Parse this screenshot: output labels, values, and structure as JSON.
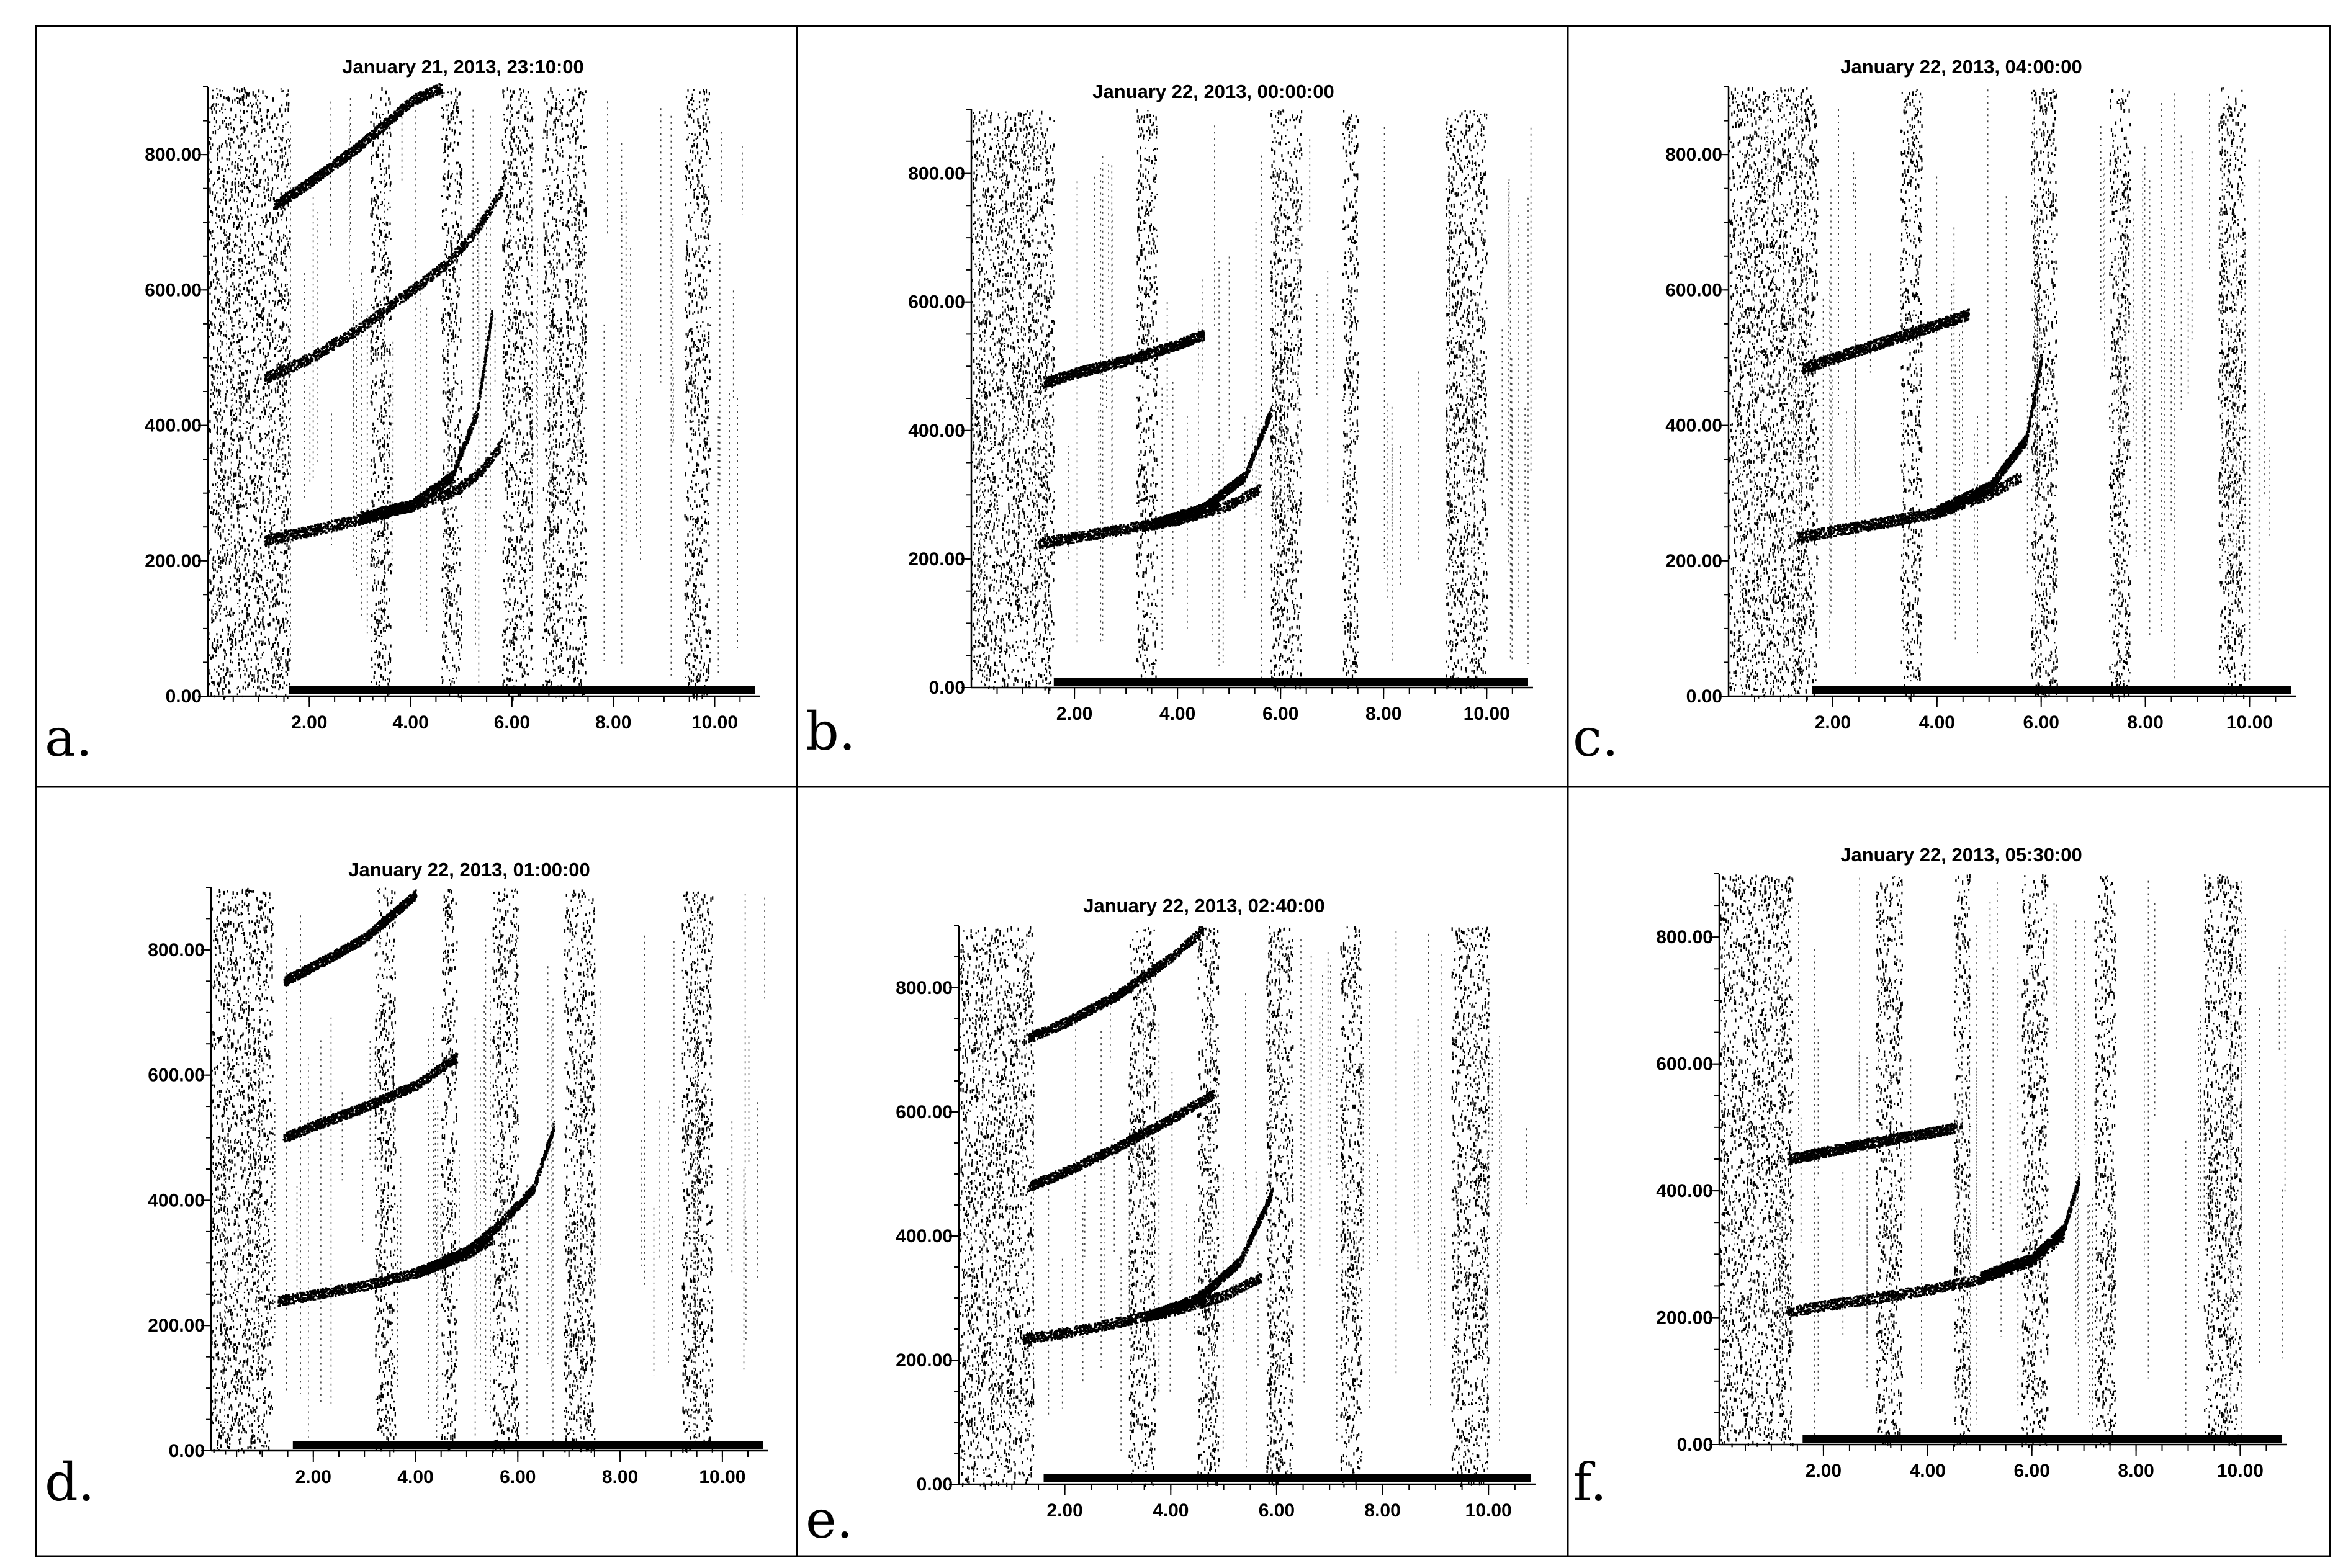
{
  "chart_data": [
    {
      "type": "scatter",
      "panel_label": "a.",
      "title": "January 21, 2013, 23:10:00",
      "xlabel": "",
      "ylabel": "",
      "xlim": [
        0.0,
        10.9
      ],
      "ylim": [
        0,
        900
      ],
      "x_ticks": [
        "2.00",
        "4.00",
        "6.00",
        "8.00",
        "10.00"
      ],
      "y_ticks": [
        "0.00",
        "200.00",
        "400.00",
        "600.00",
        "800.00"
      ],
      "grid": false,
      "noise_bands": [
        [
          0.0,
          1.6
        ],
        [
          3.2,
          3.6
        ],
        [
          4.6,
          5.0
        ],
        [
          5.8,
          6.4
        ],
        [
          6.6,
          7.0
        ],
        [
          7.05,
          7.45
        ],
        [
          9.4,
          9.9
        ]
      ],
      "series": [
        {
          "x": [
            1.1,
            2.0,
            3.0,
            4.0,
            4.9,
            5.4,
            5.8
          ],
          "y": [
            230,
            245,
            262,
            282,
            305,
            335,
            375
          ]
        },
        {
          "x": [
            3.0,
            4.0,
            4.8,
            5.3,
            5.6
          ],
          "y": [
            265,
            283,
            325,
            420,
            570
          ]
        },
        {
          "x": [
            1.1,
            2.0,
            3.0,
            4.0,
            4.7,
            5.3,
            5.8
          ],
          "y": [
            470,
            500,
            545,
            600,
            640,
            690,
            750
          ]
        },
        {
          "x": [
            1.3,
            2.0,
            3.0,
            4.0,
            4.6
          ],
          "y": [
            725,
            760,
            815,
            880,
            900
          ]
        }
      ]
    },
    {
      "type": "scatter",
      "panel_label": "b.",
      "title": "January 22, 2013, 00:00:00",
      "xlabel": "",
      "ylabel": "",
      "xlim": [
        0.0,
        10.9
      ],
      "ylim": [
        0,
        900
      ],
      "x_ticks": [
        "2.00",
        "4.00",
        "6.00",
        "8.00",
        "10.00"
      ],
      "y_ticks": [
        "0.00",
        "200.00",
        "400.00",
        "600.00",
        "800.00"
      ],
      "grid": false,
      "noise_bands": [
        [
          0.0,
          1.6
        ],
        [
          3.2,
          3.6
        ],
        [
          5.8,
          6.4
        ],
        [
          7.2,
          7.5
        ],
        [
          9.2,
          10.0
        ]
      ],
      "series": [
        {
          "x": [
            1.3,
            2.0,
            3.0,
            4.0,
            5.0,
            5.6
          ],
          "y": [
            225,
            235,
            248,
            262,
            285,
            310
          ]
        },
        {
          "x": [
            3.5,
            4.5,
            5.3,
            5.8
          ],
          "y": [
            255,
            280,
            330,
            430
          ]
        },
        {
          "x": [
            1.4,
            2.0,
            3.0,
            4.0,
            4.5
          ],
          "y": [
            475,
            490,
            510,
            535,
            550
          ]
        }
      ]
    },
    {
      "type": "scatter",
      "panel_label": "c.",
      "title": "January 22, 2013, 04:00:00",
      "xlabel": "",
      "ylabel": "",
      "xlim": [
        0.0,
        10.9
      ],
      "ylim": [
        0,
        900
      ],
      "x_ticks": [
        "2.00",
        "4.00",
        "6.00",
        "8.00",
        "10.00"
      ],
      "y_ticks": [
        "0.00",
        "200.00",
        "400.00",
        "600.00",
        "800.00"
      ],
      "grid": false,
      "noise_bands": [
        [
          0.0,
          1.7
        ],
        [
          3.3,
          3.7
        ],
        [
          5.8,
          6.3
        ],
        [
          7.3,
          7.7
        ],
        [
          9.4,
          9.9
        ]
      ],
      "series": [
        {
          "x": [
            1.3,
            2.0,
            3.0,
            4.0,
            5.0,
            5.6
          ],
          "y": [
            235,
            245,
            258,
            272,
            300,
            325
          ]
        },
        {
          "x": [
            4.0,
            5.0,
            5.7,
            6.0
          ],
          "y": [
            275,
            310,
            380,
            500
          ]
        },
        {
          "x": [
            1.4,
            2.0,
            3.0,
            4.0,
            4.6
          ],
          "y": [
            485,
            500,
            525,
            550,
            565
          ]
        }
      ]
    },
    {
      "type": "scatter",
      "panel_label": "d.",
      "title": "January 22, 2013, 01:00:00",
      "xlabel": "",
      "ylabel": "",
      "xlim": [
        0.0,
        10.9
      ],
      "ylim": [
        0,
        900
      ],
      "x_ticks": [
        "2.00",
        "4.00",
        "6.00",
        "8.00",
        "10.00"
      ],
      "y_ticks": [
        "0.00",
        "200.00",
        "400.00",
        "600.00",
        "800.00"
      ],
      "grid": false,
      "noise_bands": [
        [
          0.0,
          1.2
        ],
        [
          3.2,
          3.6
        ],
        [
          4.5,
          4.8
        ],
        [
          5.5,
          6.0
        ],
        [
          6.9,
          7.5
        ],
        [
          9.2,
          9.8
        ]
      ],
      "series": [
        {
          "x": [
            1.3,
            2.0,
            3.0,
            4.0,
            5.0,
            5.5
          ],
          "y": [
            240,
            250,
            265,
            285,
            315,
            340
          ]
        },
        {
          "x": [
            4.0,
            5.0,
            5.6,
            6.3,
            6.7
          ],
          "y": [
            285,
            320,
            360,
            420,
            520
          ]
        },
        {
          "x": [
            1.4,
            2.0,
            3.0,
            4.0,
            4.8
          ],
          "y": [
            500,
            520,
            550,
            585,
            630
          ]
        },
        {
          "x": [
            1.4,
            2.0,
            3.0,
            4.0
          ],
          "y": [
            750,
            775,
            820,
            890
          ]
        }
      ]
    },
    {
      "type": "scatter",
      "panel_label": "e.",
      "title": "January 22, 2013, 02:40:00",
      "xlabel": "",
      "ylabel": "",
      "xlim": [
        0.0,
        10.9
      ],
      "ylim": [
        0,
        900
      ],
      "x_ticks": [
        "2.00",
        "4.00",
        "6.00",
        "8.00",
        "10.00"
      ],
      "y_ticks": [
        "0.00",
        "200.00",
        "400.00",
        "600.00",
        "800.00"
      ],
      "grid": false,
      "noise_bands": [
        [
          0.0,
          1.4
        ],
        [
          3.2,
          3.7
        ],
        [
          4.5,
          4.9
        ],
        [
          5.8,
          6.3
        ],
        [
          7.2,
          7.6
        ],
        [
          9.3,
          10.0
        ]
      ],
      "series": [
        {
          "x": [
            1.2,
            2.0,
            3.0,
            4.0,
            5.0,
            5.7
          ],
          "y": [
            235,
            245,
            262,
            280,
            305,
            335
          ]
        },
        {
          "x": [
            3.5,
            4.5,
            5.3,
            5.9
          ],
          "y": [
            270,
            300,
            360,
            470
          ]
        },
        {
          "x": [
            1.3,
            2.0,
            3.0,
            4.0,
            4.8
          ],
          "y": [
            480,
            505,
            545,
            590,
            630
          ]
        },
        {
          "x": [
            1.3,
            2.0,
            3.0,
            4.0,
            4.6
          ],
          "y": [
            720,
            745,
            790,
            850,
            895
          ]
        }
      ]
    },
    {
      "type": "scatter",
      "panel_label": "f.",
      "title": "January 22, 2013, 05:30:00",
      "xlabel": "",
      "ylabel": "",
      "xlim": [
        0.0,
        10.9
      ],
      "ylim": [
        0,
        900
      ],
      "x_ticks": [
        "2.00",
        "4.00",
        "6.00",
        "8.00",
        "10.00"
      ],
      "y_ticks": [
        "0.00",
        "200.00",
        "400.00",
        "600.00",
        "800.00"
      ],
      "grid": false,
      "noise_bands": [
        [
          0.0,
          1.4
        ],
        [
          3.0,
          3.5
        ],
        [
          4.5,
          4.8
        ],
        [
          5.8,
          6.3
        ],
        [
          7.2,
          7.6
        ],
        [
          9.3,
          10.0
        ]
      ],
      "series": [
        {
          "x": [
            1.3,
            2.0,
            3.0,
            4.0,
            5.0,
            6.0,
            6.6
          ],
          "y": [
            210,
            220,
            232,
            245,
            262,
            290,
            330
          ]
        },
        {
          "x": [
            5.0,
            6.0,
            6.6,
            6.9
          ],
          "y": [
            265,
            295,
            340,
            420
          ]
        },
        {
          "x": [
            1.3,
            2.0,
            3.0,
            4.0,
            4.5
          ],
          "y": [
            450,
            462,
            478,
            492,
            500
          ]
        }
      ]
    }
  ]
}
